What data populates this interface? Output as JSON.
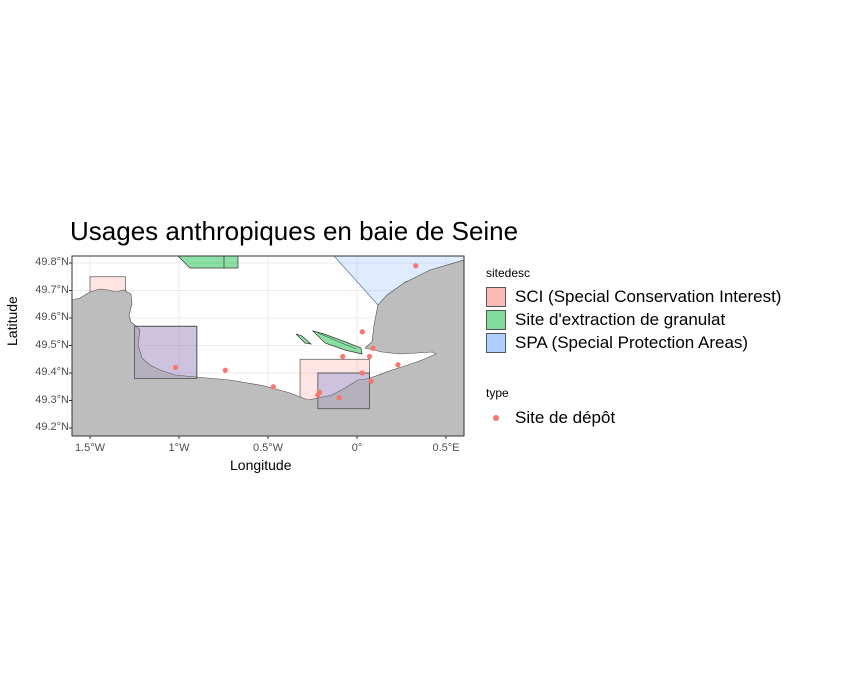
{
  "title": "Usages anthropiques en baie de Seine",
  "x_axis": {
    "label": "Longitude",
    "ticks": [
      "1.5°W",
      "1°W",
      "0.5°W",
      "0°",
      "0.5°E"
    ]
  },
  "y_axis": {
    "label": "Latitude",
    "ticks": [
      "49.8°N",
      "49.7°N",
      "49.6°N",
      "49.5°N",
      "49.4°N",
      "49.3°N",
      "49.2°N"
    ]
  },
  "legend": {
    "sitedesc_title": "sitedesc",
    "sitedesc_items": [
      {
        "label": "SCI (Special Conservation Interest)",
        "color": "#f8766d"
      },
      {
        "label": "Site d'extraction de granulat",
        "color": "#00ba38"
      },
      {
        "label": "SPA (Special Protection Areas)",
        "color": "#619cff"
      }
    ],
    "type_title": "type",
    "type_items": [
      {
        "label": "Site de dépôt",
        "color": "#f8766d"
      }
    ]
  },
  "chart_data": {
    "type": "map",
    "title": "Usages anthropiques en baie de Seine",
    "xlabel": "Longitude",
    "ylabel": "Latitude",
    "xlim": [
      -1.6,
      0.6
    ],
    "ylim": [
      49.19,
      49.82
    ],
    "land_color": "#bdbdbd",
    "grid": true,
    "legend_position": "right",
    "areas": [
      {
        "category": "SCI (Special Conservation Interest)",
        "lon": [
          -1.5,
          -1.3
        ],
        "lat": [
          49.57,
          49.75
        ]
      },
      {
        "category": "SCI (Special Conservation Interest)",
        "lon": [
          -1.25,
          -0.9
        ],
        "lat": [
          49.38,
          49.57
        ]
      },
      {
        "category": "SCI (Special Conservation Interest)",
        "lon": [
          -0.32,
          0.07
        ],
        "lat": [
          49.27,
          49.45
        ]
      },
      {
        "category": "SPA (Special Protection Areas)",
        "lon": [
          -1.25,
          -0.9
        ],
        "lat": [
          49.38,
          49.57
        ]
      },
      {
        "category": "SPA (Special Protection Areas)",
        "lon": [
          -0.22,
          0.07
        ],
        "lat": [
          49.27,
          49.4
        ]
      },
      {
        "category": "SPA (Special Protection Areas)",
        "lon": [
          -0.12,
          0.6
        ],
        "lat": [
          49.6,
          49.82
        ]
      },
      {
        "category": "Site d'extraction de granulat",
        "lon": [
          -1.0,
          -0.67
        ],
        "lat": [
          49.77,
          49.82
        ]
      },
      {
        "category": "Site d'extraction de granulat",
        "lon": [
          -0.33,
          -0.27
        ],
        "lat": [
          49.47,
          49.52
        ]
      },
      {
        "category": "Site d'extraction de granulat",
        "lon": [
          -0.24,
          0.04
        ],
        "lat": [
          49.47,
          49.54
        ]
      }
    ],
    "series": [
      {
        "name": "Site de dépôt",
        "lon": [
          -1.02,
          -0.74,
          -0.47,
          -0.22,
          -0.21,
          -0.1,
          -0.08,
          0.03,
          0.03,
          0.07,
          0.08,
          0.09,
          0.23,
          0.33
        ],
        "lat": [
          49.42,
          49.41,
          49.35,
          49.32,
          49.33,
          49.31,
          49.46,
          49.55,
          49.4,
          49.46,
          49.37,
          49.49,
          49.43,
          49.79
        ]
      }
    ]
  }
}
